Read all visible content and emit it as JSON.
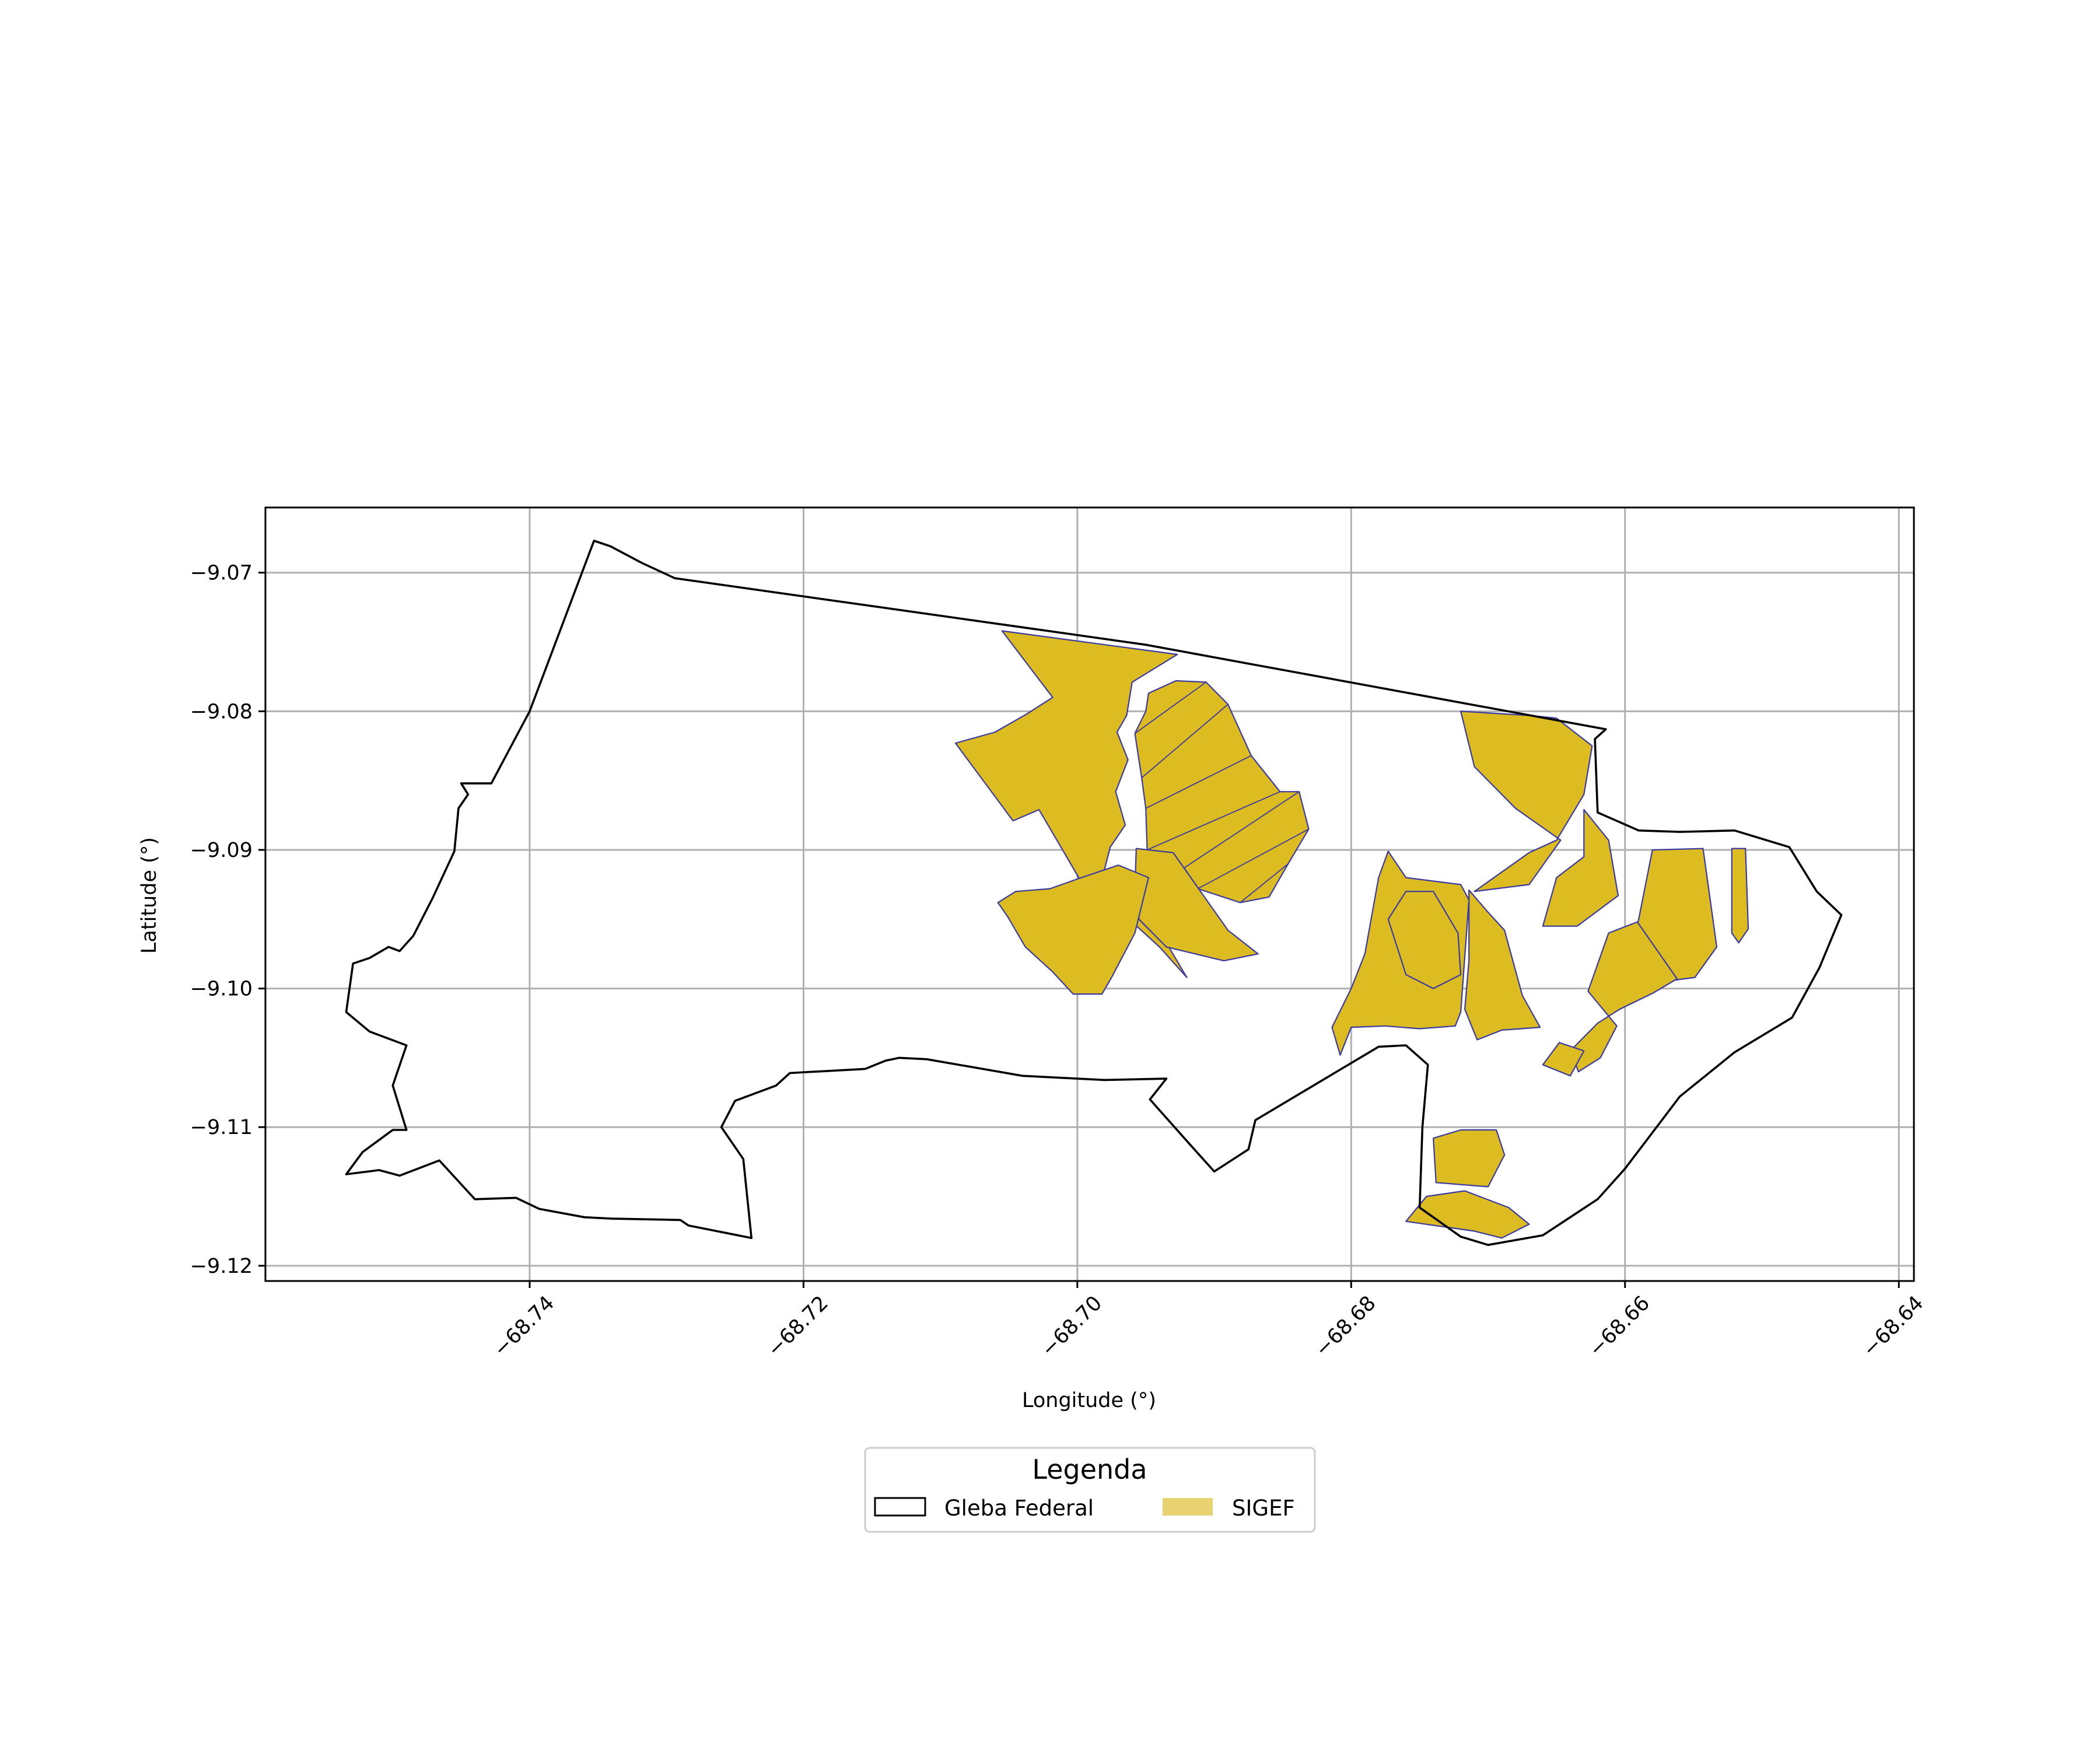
{
  "chart_data": {
    "type": "map",
    "xlabel": "Longitude (°)",
    "ylabel": "Latitude (°)",
    "xlim": [
      -68.7593,
      -68.6389
    ],
    "ylim": [
      -9.1211,
      -9.0653
    ],
    "xticks": [
      -68.74,
      -68.72,
      -68.7,
      -68.68,
      -68.66,
      -68.64
    ],
    "xtick_labels": [
      "−68.74",
      "−68.72",
      "−68.70",
      "−68.68",
      "−68.66",
      "−68.64"
    ],
    "yticks": [
      -9.07,
      -9.08,
      -9.09,
      -9.1,
      -9.11,
      -9.12
    ],
    "ytick_labels": [
      "−9.07",
      "−9.08",
      "−9.09",
      "−9.10",
      "−9.11",
      "−9.12"
    ],
    "grid": true,
    "legend": {
      "title": "Legenda",
      "position": "bottom-center",
      "entries": [
        {
          "label": "Gleba Federal",
          "style": "outline",
          "color": "#000000"
        },
        {
          "label": "SIGEF",
          "style": "fill",
          "color": "#e8d170"
        }
      ]
    },
    "layers": {
      "gleba_federal": {
        "name": "Gleba Federal",
        "color": "#000000",
        "polygon": [
          [
            -68.7353,
            -9.0677
          ],
          [
            -68.7341,
            -9.0681
          ],
          [
            -68.7318,
            -9.0693
          ],
          [
            -68.7294,
            -9.0704
          ],
          [
            -68.695,
            -9.0752
          ],
          [
            -68.6614,
            -9.0813
          ],
          [
            -68.6622,
            -9.082
          ],
          [
            -68.662,
            -9.0873
          ],
          [
            -68.659,
            -9.0886
          ],
          [
            -68.656,
            -9.0887
          ],
          [
            -68.652,
            -9.0886
          ],
          [
            -68.648,
            -9.0898
          ],
          [
            -68.646,
            -9.093
          ],
          [
            -68.6442,
            -9.0947
          ],
          [
            -68.6458,
            -9.0985
          ],
          [
            -68.6478,
            -9.1021
          ],
          [
            -68.652,
            -9.1046
          ],
          [
            -68.656,
            -9.1078
          ],
          [
            -68.66,
            -9.113
          ],
          [
            -68.662,
            -9.1152
          ],
          [
            -68.666,
            -9.1178
          ],
          [
            -68.67,
            -9.1185
          ],
          [
            -68.672,
            -9.1179
          ],
          [
            -68.675,
            -9.1158
          ],
          [
            -68.6748,
            -9.11
          ],
          [
            -68.6744,
            -9.1055
          ],
          [
            -68.676,
            -9.1041
          ],
          [
            -68.678,
            -9.1042
          ],
          [
            -68.687,
            -9.1095
          ],
          [
            -68.6875,
            -9.1116
          ],
          [
            -68.69,
            -9.1132
          ],
          [
            -68.692,
            -9.111
          ],
          [
            -68.6947,
            -9.108
          ],
          [
            -68.6935,
            -9.1065
          ],
          [
            -68.698,
            -9.1066
          ],
          [
            -68.704,
            -9.1063
          ],
          [
            -68.711,
            -9.1051
          ],
          [
            -68.713,
            -9.105
          ],
          [
            -68.714,
            -9.1052
          ],
          [
            -68.7155,
            -9.1058
          ],
          [
            -68.721,
            -9.1061
          ],
          [
            -68.722,
            -9.107
          ],
          [
            -68.725,
            -9.1081
          ],
          [
            -68.726,
            -9.11
          ],
          [
            -68.7244,
            -9.1123
          ],
          [
            -68.7238,
            -9.118
          ],
          [
            -68.7284,
            -9.1171
          ],
          [
            -68.729,
            -9.1167
          ],
          [
            -68.734,
            -9.1166
          ],
          [
            -68.736,
            -9.1165
          ],
          [
            -68.7393,
            -9.1159
          ],
          [
            -68.741,
            -9.1151
          ],
          [
            -68.744,
            -9.1152
          ],
          [
            -68.7466,
            -9.1124
          ],
          [
            -68.7495,
            -9.1135
          ],
          [
            -68.751,
            -9.1131
          ],
          [
            -68.7534,
            -9.1134
          ],
          [
            -68.7522,
            -9.1118
          ],
          [
            -68.75,
            -9.1102
          ],
          [
            -68.749,
            -9.1102
          ],
          [
            -68.75,
            -9.107
          ],
          [
            -68.749,
            -9.1041
          ],
          [
            -68.7517,
            -9.1031
          ],
          [
            -68.7534,
            -9.1017
          ],
          [
            -68.7529,
            -9.0982
          ],
          [
            -68.7517,
            -9.0978
          ],
          [
            -68.7503,
            -9.097
          ],
          [
            -68.7495,
            -9.0973
          ],
          [
            -68.7485,
            -9.0962
          ],
          [
            -68.7471,
            -9.0935
          ],
          [
            -68.7455,
            -9.0901
          ],
          [
            -68.7452,
            -9.087
          ],
          [
            -68.7445,
            -9.086
          ],
          [
            -68.745,
            -9.0852
          ],
          [
            -68.7428,
            -9.0852
          ],
          [
            -68.74,
            -9.08
          ],
          [
            -68.7353,
            -9.0677
          ]
        ]
      },
      "sigef": {
        "name": "SIGEF",
        "color": "#dcbc20",
        "parcels": [
          [
            [
              -68.7055,
              -9.0742
            ],
            [
              -68.6927,
              -9.0759
            ],
            [
              -68.696,
              -9.0779
            ],
            [
              -68.6964,
              -9.0803
            ],
            [
              -68.6971,
              -9.0815
            ],
            [
              -68.6963,
              -9.0835
            ],
            [
              -68.6972,
              -9.0858
            ],
            [
              -68.6965,
              -9.0882
            ],
            [
              -68.6976,
              -9.0898
            ],
            [
              -68.6983,
              -9.0925
            ],
            [
              -68.6996,
              -9.0925
            ],
            [
              -68.7028,
              -9.0871
            ],
            [
              -68.7047,
              -9.0879
            ],
            [
              -68.7089,
              -9.0823
            ],
            [
              -68.706,
              -9.0815
            ],
            [
              -68.7037,
              -9.0802
            ],
            [
              -68.7018,
              -9.079
            ],
            [
              -68.7055,
              -9.0742
            ]
          ],
          [
            [
              -68.6948,
              -9.0787
            ],
            [
              -68.6928,
              -9.0778
            ],
            [
              -68.6906,
              -9.0779
            ],
            [
              -68.689,
              -9.0795
            ],
            [
              -68.6873,
              -9.0832
            ],
            [
              -68.6852,
              -9.0858
            ],
            [
              -68.6838,
              -9.0858
            ],
            [
              -68.6831,
              -9.0885
            ],
            [
              -68.6846,
              -9.091
            ],
            [
              -68.686,
              -9.0934
            ],
            [
              -68.6881,
              -9.0938
            ],
            [
              -68.6912,
              -9.0928
            ],
            [
              -68.6922,
              -9.0913
            ],
            [
              -68.6949,
              -9.09
            ],
            [
              -68.695,
              -9.087
            ],
            [
              -68.6953,
              -9.0848
            ],
            [
              -68.6958,
              -9.0816
            ],
            [
              -68.695,
              -9.08
            ],
            [
              -68.6948,
              -9.0787
            ]
          ],
          [
            [
              -68.6986,
              -9.092
            ],
            [
              -68.6958,
              -9.0945
            ],
            [
              -68.6935,
              -9.0967
            ],
            [
              -68.692,
              -9.0992
            ],
            [
              -68.694,
              -9.097
            ],
            [
              -68.696,
              -9.0952
            ],
            [
              -68.6985,
              -9.0946
            ],
            [
              -68.6992,
              -9.0945
            ],
            [
              -68.6988,
              -9.0932
            ],
            [
              -68.6986,
              -9.092
            ]
          ],
          [
            [
              -68.6957,
              -9.0899
            ],
            [
              -68.693,
              -9.0902
            ],
            [
              -68.689,
              -9.0958
            ],
            [
              -68.6868,
              -9.0975
            ],
            [
              -68.6893,
              -9.098
            ],
            [
              -68.6935,
              -9.097
            ],
            [
              -68.6955,
              -9.095
            ],
            [
              -68.6958,
              -9.093
            ],
            [
              -68.6957,
              -9.0899
            ]
          ],
          [
            [
              -68.7058,
              -9.0938
            ],
            [
              -68.7045,
              -9.093
            ],
            [
              -68.702,
              -9.0928
            ],
            [
              -68.7,
              -9.0921
            ],
            [
              -68.697,
              -9.0911
            ],
            [
              -68.6948,
              -9.092
            ],
            [
              -68.6958,
              -9.096
            ],
            [
              -68.6975,
              -9.0992
            ],
            [
              -68.6982,
              -9.1004
            ],
            [
              -68.7003,
              -9.1004
            ],
            [
              -68.7018,
              -9.0988
            ],
            [
              -68.7038,
              -9.097
            ],
            [
              -68.7051,
              -9.0948
            ],
            [
              -68.7058,
              -9.0938
            ]
          ],
          [
            [
              -68.6773,
              -9.0901
            ],
            [
              -68.676,
              -9.092
            ],
            [
              -68.672,
              -9.0925
            ],
            [
              -68.6714,
              -9.0936
            ],
            [
              -68.672,
              -9.1017
            ],
            [
              -68.6724,
              -9.1027
            ],
            [
              -68.675,
              -9.1029
            ],
            [
              -68.6775,
              -9.1027
            ],
            [
              -68.68,
              -9.1028
            ],
            [
              -68.6808,
              -9.1048
            ],
            [
              -68.6814,
              -9.1028
            ],
            [
              -68.68,
              -9.1
            ],
            [
              -68.679,
              -9.0975
            ],
            [
              -68.678,
              -9.092
            ],
            [
              -68.6773,
              -9.0901
            ]
          ],
          [
            [
              -68.6714,
              -9.0929
            ],
            [
              -68.67,
              -9.0945
            ],
            [
              -68.6688,
              -9.0958
            ],
            [
              -68.6675,
              -9.1005
            ],
            [
              -68.6662,
              -9.1028
            ],
            [
              -68.669,
              -9.103
            ],
            [
              -68.6708,
              -9.1037
            ],
            [
              -68.6717,
              -9.1015
            ],
            [
              -68.6714,
              -9.098
            ],
            [
              -68.6714,
              -9.0929
            ]
          ],
          [
            [
              -68.667,
              -9.0803
            ],
            [
              -68.672,
              -9.08
            ],
            [
              -68.671,
              -9.084
            ],
            [
              -68.668,
              -9.087
            ],
            [
              -68.6647,
              -9.0893
            ],
            [
              -68.667,
              -9.0925
            ],
            [
              -68.671,
              -9.093
            ],
            [
              -68.667,
              -9.0902
            ],
            [
              -68.665,
              -9.0893
            ],
            [
              -68.663,
              -9.086
            ],
            [
              -68.6624,
              -9.0825
            ],
            [
              -68.665,
              -9.0805
            ],
            [
              -68.667,
              -9.0803
            ]
          ],
          [
            [
              -68.663,
              -9.0871
            ],
            [
              -68.663,
              -9.0905
            ],
            [
              -68.665,
              -9.092
            ],
            [
              -68.666,
              -9.0955
            ],
            [
              -68.6635,
              -9.0955
            ],
            [
              -68.6605,
              -9.0933
            ],
            [
              -68.6612,
              -9.0893
            ],
            [
              -68.663,
              -9.0871
            ]
          ],
          [
            [
              -68.658,
              -9.09
            ],
            [
              -68.6543,
              -9.0899
            ],
            [
              -68.6533,
              -9.097
            ],
            [
              -68.6549,
              -9.0992
            ],
            [
              -68.658,
              -9.0996
            ],
            [
              -68.6595,
              -9.097
            ],
            [
              -68.659,
              -9.095
            ],
            [
              -68.658,
              -9.09
            ]
          ],
          [
            [
              -68.6591,
              -9.0952
            ],
            [
              -68.6612,
              -9.096
            ],
            [
              -68.6627,
              -9.1002
            ],
            [
              -68.6606,
              -9.1027
            ],
            [
              -68.6618,
              -9.105
            ],
            [
              -68.6634,
              -9.106
            ],
            [
              -68.664,
              -9.1045
            ],
            [
              -68.662,
              -9.1025
            ],
            [
              -68.6604,
              -9.1015
            ],
            [
              -68.6579,
              -9.1003
            ],
            [
              -68.6562,
              -9.0993
            ],
            [
              -68.6591,
              -9.0952
            ]
          ],
          [
            [
              -68.6522,
              -9.0899
            ],
            [
              -68.6512,
              -9.0899
            ],
            [
              -68.651,
              -9.0957
            ],
            [
              -68.6517,
              -9.0967
            ],
            [
              -68.6522,
              -9.096
            ],
            [
              -68.6522,
              -9.0899
            ]
          ],
          [
            [
              -68.6694,
              -9.1102
            ],
            [
              -68.672,
              -9.1102
            ],
            [
              -68.674,
              -9.1108
            ],
            [
              -68.6738,
              -9.114
            ],
            [
              -68.67,
              -9.1143
            ],
            [
              -68.6688,
              -9.112
            ],
            [
              -68.6694,
              -9.1102
            ]
          ],
          [
            [
              -68.6648,
              -9.1039
            ],
            [
              -68.663,
              -9.1045
            ],
            [
              -68.664,
              -9.1063
            ],
            [
              -68.666,
              -9.1055
            ],
            [
              -68.6648,
              -9.1039
            ]
          ],
          [
            [
              -68.6717,
              -9.1146
            ],
            [
              -68.6745,
              -9.115
            ],
            [
              -68.676,
              -9.1168
            ],
            [
              -68.671,
              -9.1175
            ],
            [
              -68.669,
              -9.118
            ],
            [
              -68.667,
              -9.117
            ],
            [
              -68.6685,
              -9.1158
            ],
            [
              -68.6717,
              -9.1146
            ]
          ],
          [
            [
              -68.676,
              -9.093
            ],
            [
              -68.674,
              -9.093
            ],
            [
              -68.6722,
              -9.096
            ],
            [
              -68.672,
              -9.099
            ],
            [
              -68.674,
              -9.1
            ],
            [
              -68.676,
              -9.099
            ],
            [
              -68.6773,
              -9.095
            ],
            [
              -68.676,
              -9.093
            ]
          ]
        ]
      }
    }
  }
}
